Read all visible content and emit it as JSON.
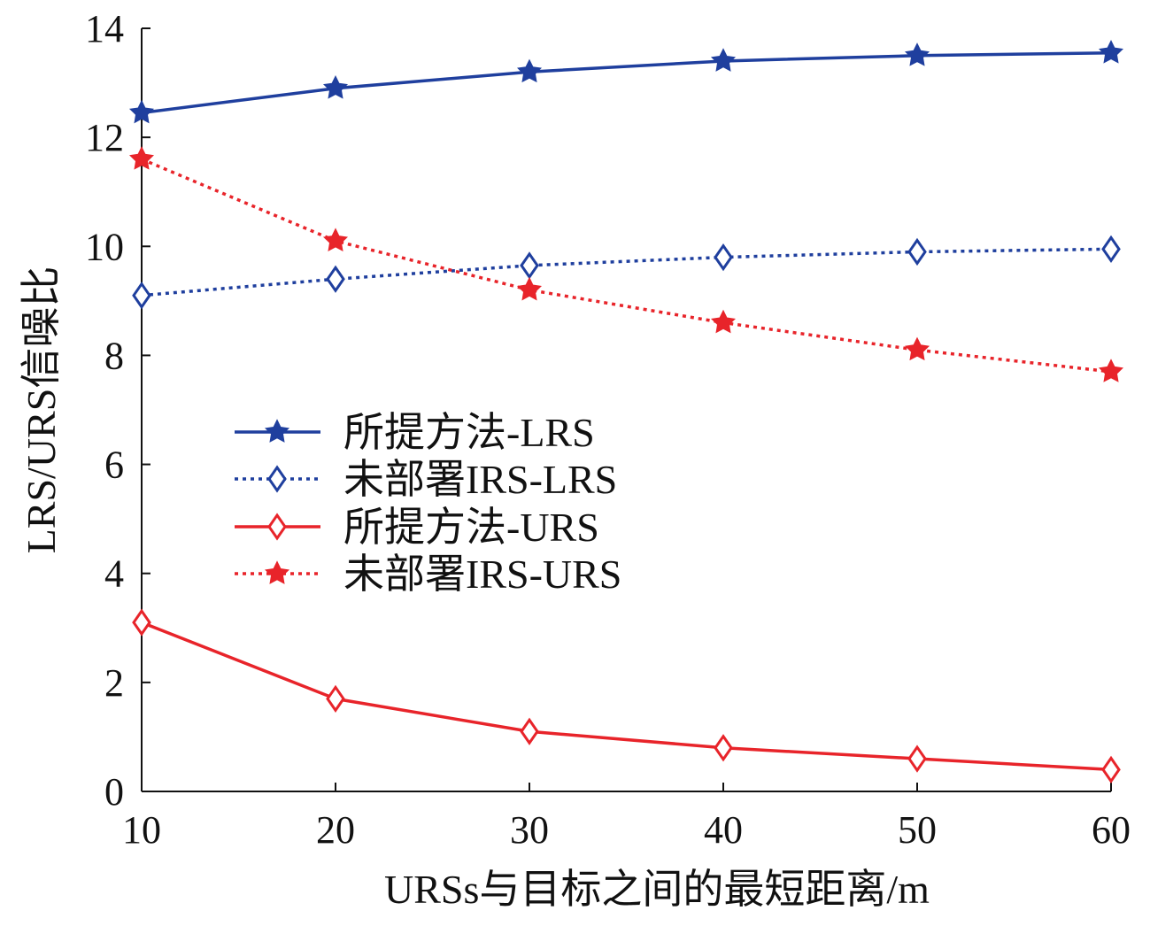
{
  "chart_data": {
    "type": "line",
    "xlabel": "URSs与目标之间的最短距离/m",
    "ylabel": "LRS/URS信噪比",
    "x": [
      10,
      20,
      30,
      40,
      50,
      60
    ],
    "xlim": [
      10,
      60
    ],
    "ylim": [
      0,
      14
    ],
    "xticks": [
      "10",
      "20",
      "30",
      "40",
      "50",
      "60"
    ],
    "yticks": [
      "0",
      "2",
      "4",
      "6",
      "8",
      "10",
      "12",
      "14"
    ],
    "grid": false,
    "legend_position": "center-left",
    "series": [
      {
        "name": "所提方法-LRS",
        "values": [
          12.45,
          12.9,
          13.2,
          13.4,
          13.5,
          13.55
        ],
        "color": "#1f3f9e",
        "line_style": "solid",
        "marker": "star"
      },
      {
        "name": "未部署IRS-LRS",
        "values": [
          9.1,
          9.4,
          9.65,
          9.8,
          9.9,
          9.95
        ],
        "color": "#1f3f9e",
        "line_style": "dotted",
        "marker": "diamond"
      },
      {
        "name": "所提方法-URS",
        "values": [
          3.1,
          1.7,
          1.1,
          0.8,
          0.6,
          0.4
        ],
        "color": "#e8242a",
        "line_style": "solid",
        "marker": "diamond"
      },
      {
        "name": "未部署IRS-URS",
        "values": [
          11.6,
          10.1,
          9.2,
          8.6,
          8.1,
          7.7
        ],
        "color": "#e8242a",
        "line_style": "dotted",
        "marker": "star"
      }
    ]
  }
}
